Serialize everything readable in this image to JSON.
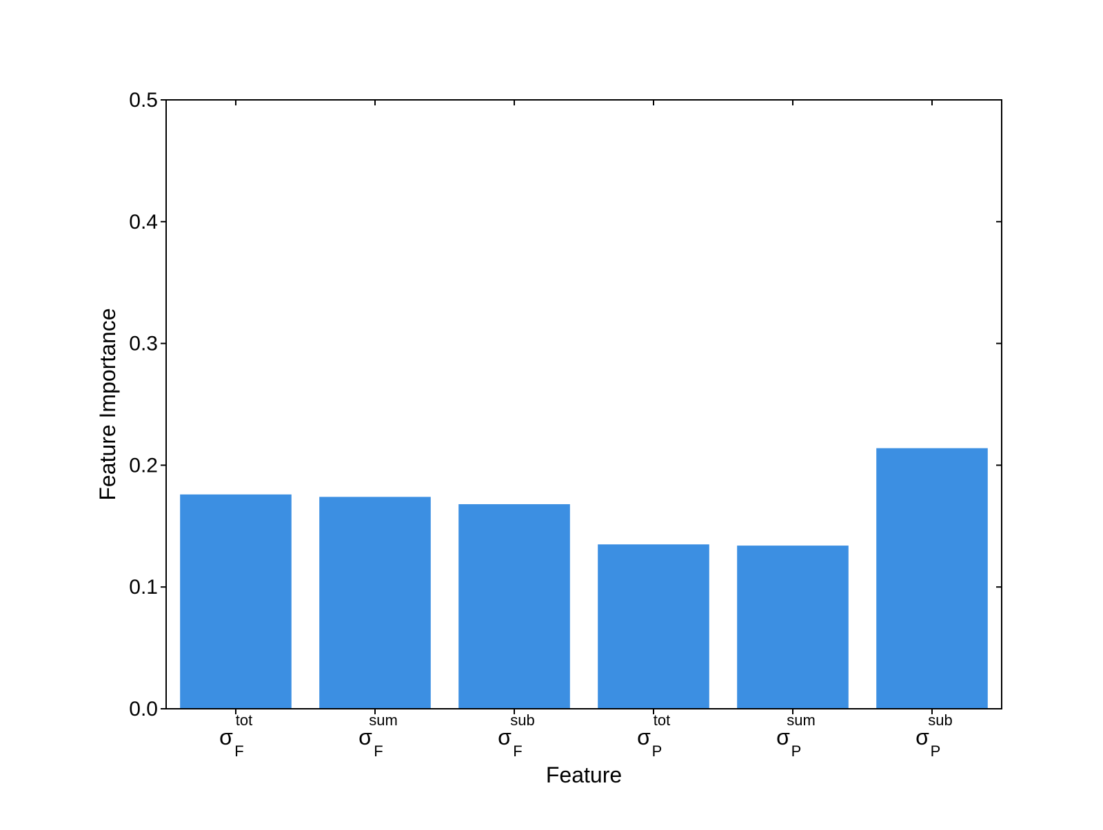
{
  "chart_data": {
    "type": "bar",
    "title": "",
    "xlabel": "Feature",
    "ylabel": "Feature Importance",
    "ylim": [
      0.0,
      0.5
    ],
    "yticks": [
      "0.0",
      "0.1",
      "0.2",
      "0.3",
      "0.4",
      "0.5"
    ],
    "grid": false,
    "categories": [
      {
        "base": "σ",
        "sub": "F",
        "sup": "tot"
      },
      {
        "base": "σ",
        "sub": "F",
        "sup": "sum"
      },
      {
        "base": "σ",
        "sub": "F",
        "sup": "sub"
      },
      {
        "base": "σ",
        "sub": "P",
        "sup": "tot"
      },
      {
        "base": "σ",
        "sub": "P",
        "sup": "sum"
      },
      {
        "base": "σ",
        "sub": "P",
        "sup": "sub"
      }
    ],
    "values": [
      0.176,
      0.174,
      0.168,
      0.135,
      0.134,
      0.214
    ],
    "colors": {
      "bar": "#3c8fe2",
      "axis": "#000000"
    }
  }
}
